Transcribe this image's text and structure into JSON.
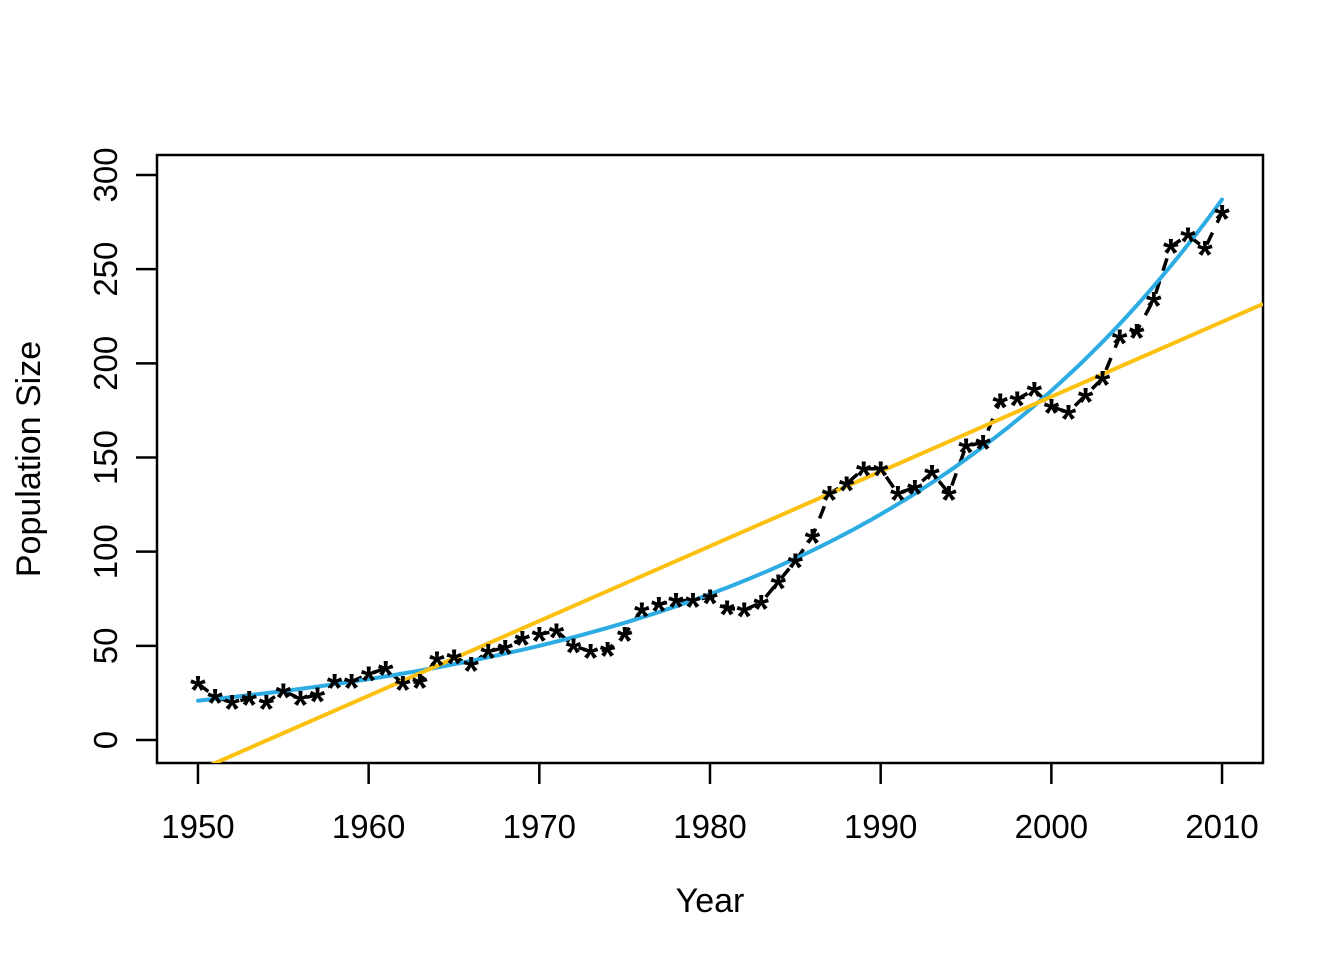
{
  "chart_data": {
    "type": "scatter",
    "title": "",
    "xlabel": "Year",
    "ylabel": "Population Size",
    "x_ticks": [
      1950,
      1960,
      1970,
      1980,
      1990,
      2000,
      2010
    ],
    "y_ticks": [
      0,
      50,
      100,
      150,
      200,
      250,
      300
    ],
    "xlim": [
      1947.6,
      2012.4
    ],
    "ylim": [
      -12.2,
      310.6
    ],
    "grid": false,
    "legend": "none",
    "x": [
      1950,
      1951,
      1952,
      1953,
      1954,
      1955,
      1956,
      1957,
      1958,
      1959,
      1960,
      1961,
      1962,
      1963,
      1964,
      1965,
      1966,
      1967,
      1968,
      1969,
      1970,
      1971,
      1972,
      1973,
      1974,
      1975,
      1976,
      1977,
      1978,
      1979,
      1980,
      1981,
      1982,
      1983,
      1984,
      1985,
      1986,
      1987,
      1988,
      1989,
      1990,
      1991,
      1992,
      1993,
      1994,
      1995,
      1996,
      1997,
      1998,
      1999,
      2000,
      2001,
      2002,
      2003,
      2004,
      2005,
      2006,
      2007,
      2008,
      2009,
      2010
    ],
    "y": [
      30,
      23,
      20,
      22,
      20,
      26,
      22,
      24,
      31,
      31,
      35,
      38,
      30,
      31,
      43,
      44,
      40,
      47,
      49,
      54,
      56,
      58,
      50,
      47,
      48,
      56,
      69,
      72,
      74,
      74,
      76,
      70,
      69,
      73,
      84,
      95,
      108,
      131,
      136,
      144,
      144,
      131,
      134,
      142,
      131,
      156,
      158,
      180,
      181,
      186,
      177,
      174,
      183,
      192,
      214,
      217,
      234,
      262,
      268,
      261,
      280
    ],
    "series": [
      {
        "name": "observed-points",
        "kind": "scatter",
        "marker": "*",
        "color": "#000000"
      },
      {
        "name": "observed-dashed-connector",
        "kind": "dashed-line",
        "color": "#000000"
      },
      {
        "name": "exponential-fit",
        "kind": "exponential",
        "color": "#2CACE3",
        "value_at_1950": 20.9,
        "rate_per_year": 0.04366,
        "t_start": 1950,
        "t_end": 2010.2
      },
      {
        "name": "linear-fit",
        "kind": "linear",
        "color": "#FCC110",
        "value_at_1950": -16.2,
        "slope_per_year": 3.97
      }
    ],
    "colors": {
      "points": "#000000",
      "exponential_fit": "#2CACE3",
      "linear_fit": "#FCC110",
      "axis": "#000000"
    }
  }
}
